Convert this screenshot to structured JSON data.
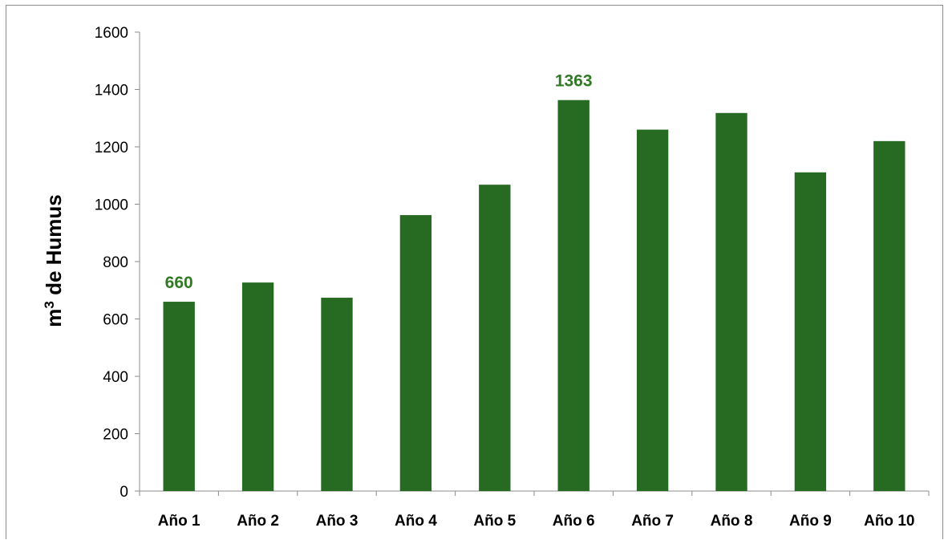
{
  "chart_data": {
    "type": "bar",
    "title": "",
    "xlabel": "",
    "ylabel_main": "m",
    "ylabel_sup": "3",
    "ylabel_rest": " de Humus",
    "categories": [
      "Año 1",
      "Año 2",
      "Año 3",
      "Año 4",
      "Año 5",
      "Año 6",
      "Año 7",
      "Año 8",
      "Año 9",
      "Año 10"
    ],
    "values": [
      660,
      727,
      674,
      962,
      1068,
      1363,
      1260,
      1318,
      1111,
      1220
    ],
    "data_labels": [
      "660",
      "",
      "",
      "",
      "",
      "1363",
      "",
      "",
      "",
      ""
    ],
    "ylim": [
      0,
      1600
    ],
    "yticks": [
      "0",
      "200",
      "400",
      "600",
      "800",
      "1000",
      "1200",
      "1400",
      "1600"
    ],
    "bar_color": "#276A22",
    "label_color": "#2F7A22",
    "grid": false,
    "legend": "none"
  }
}
